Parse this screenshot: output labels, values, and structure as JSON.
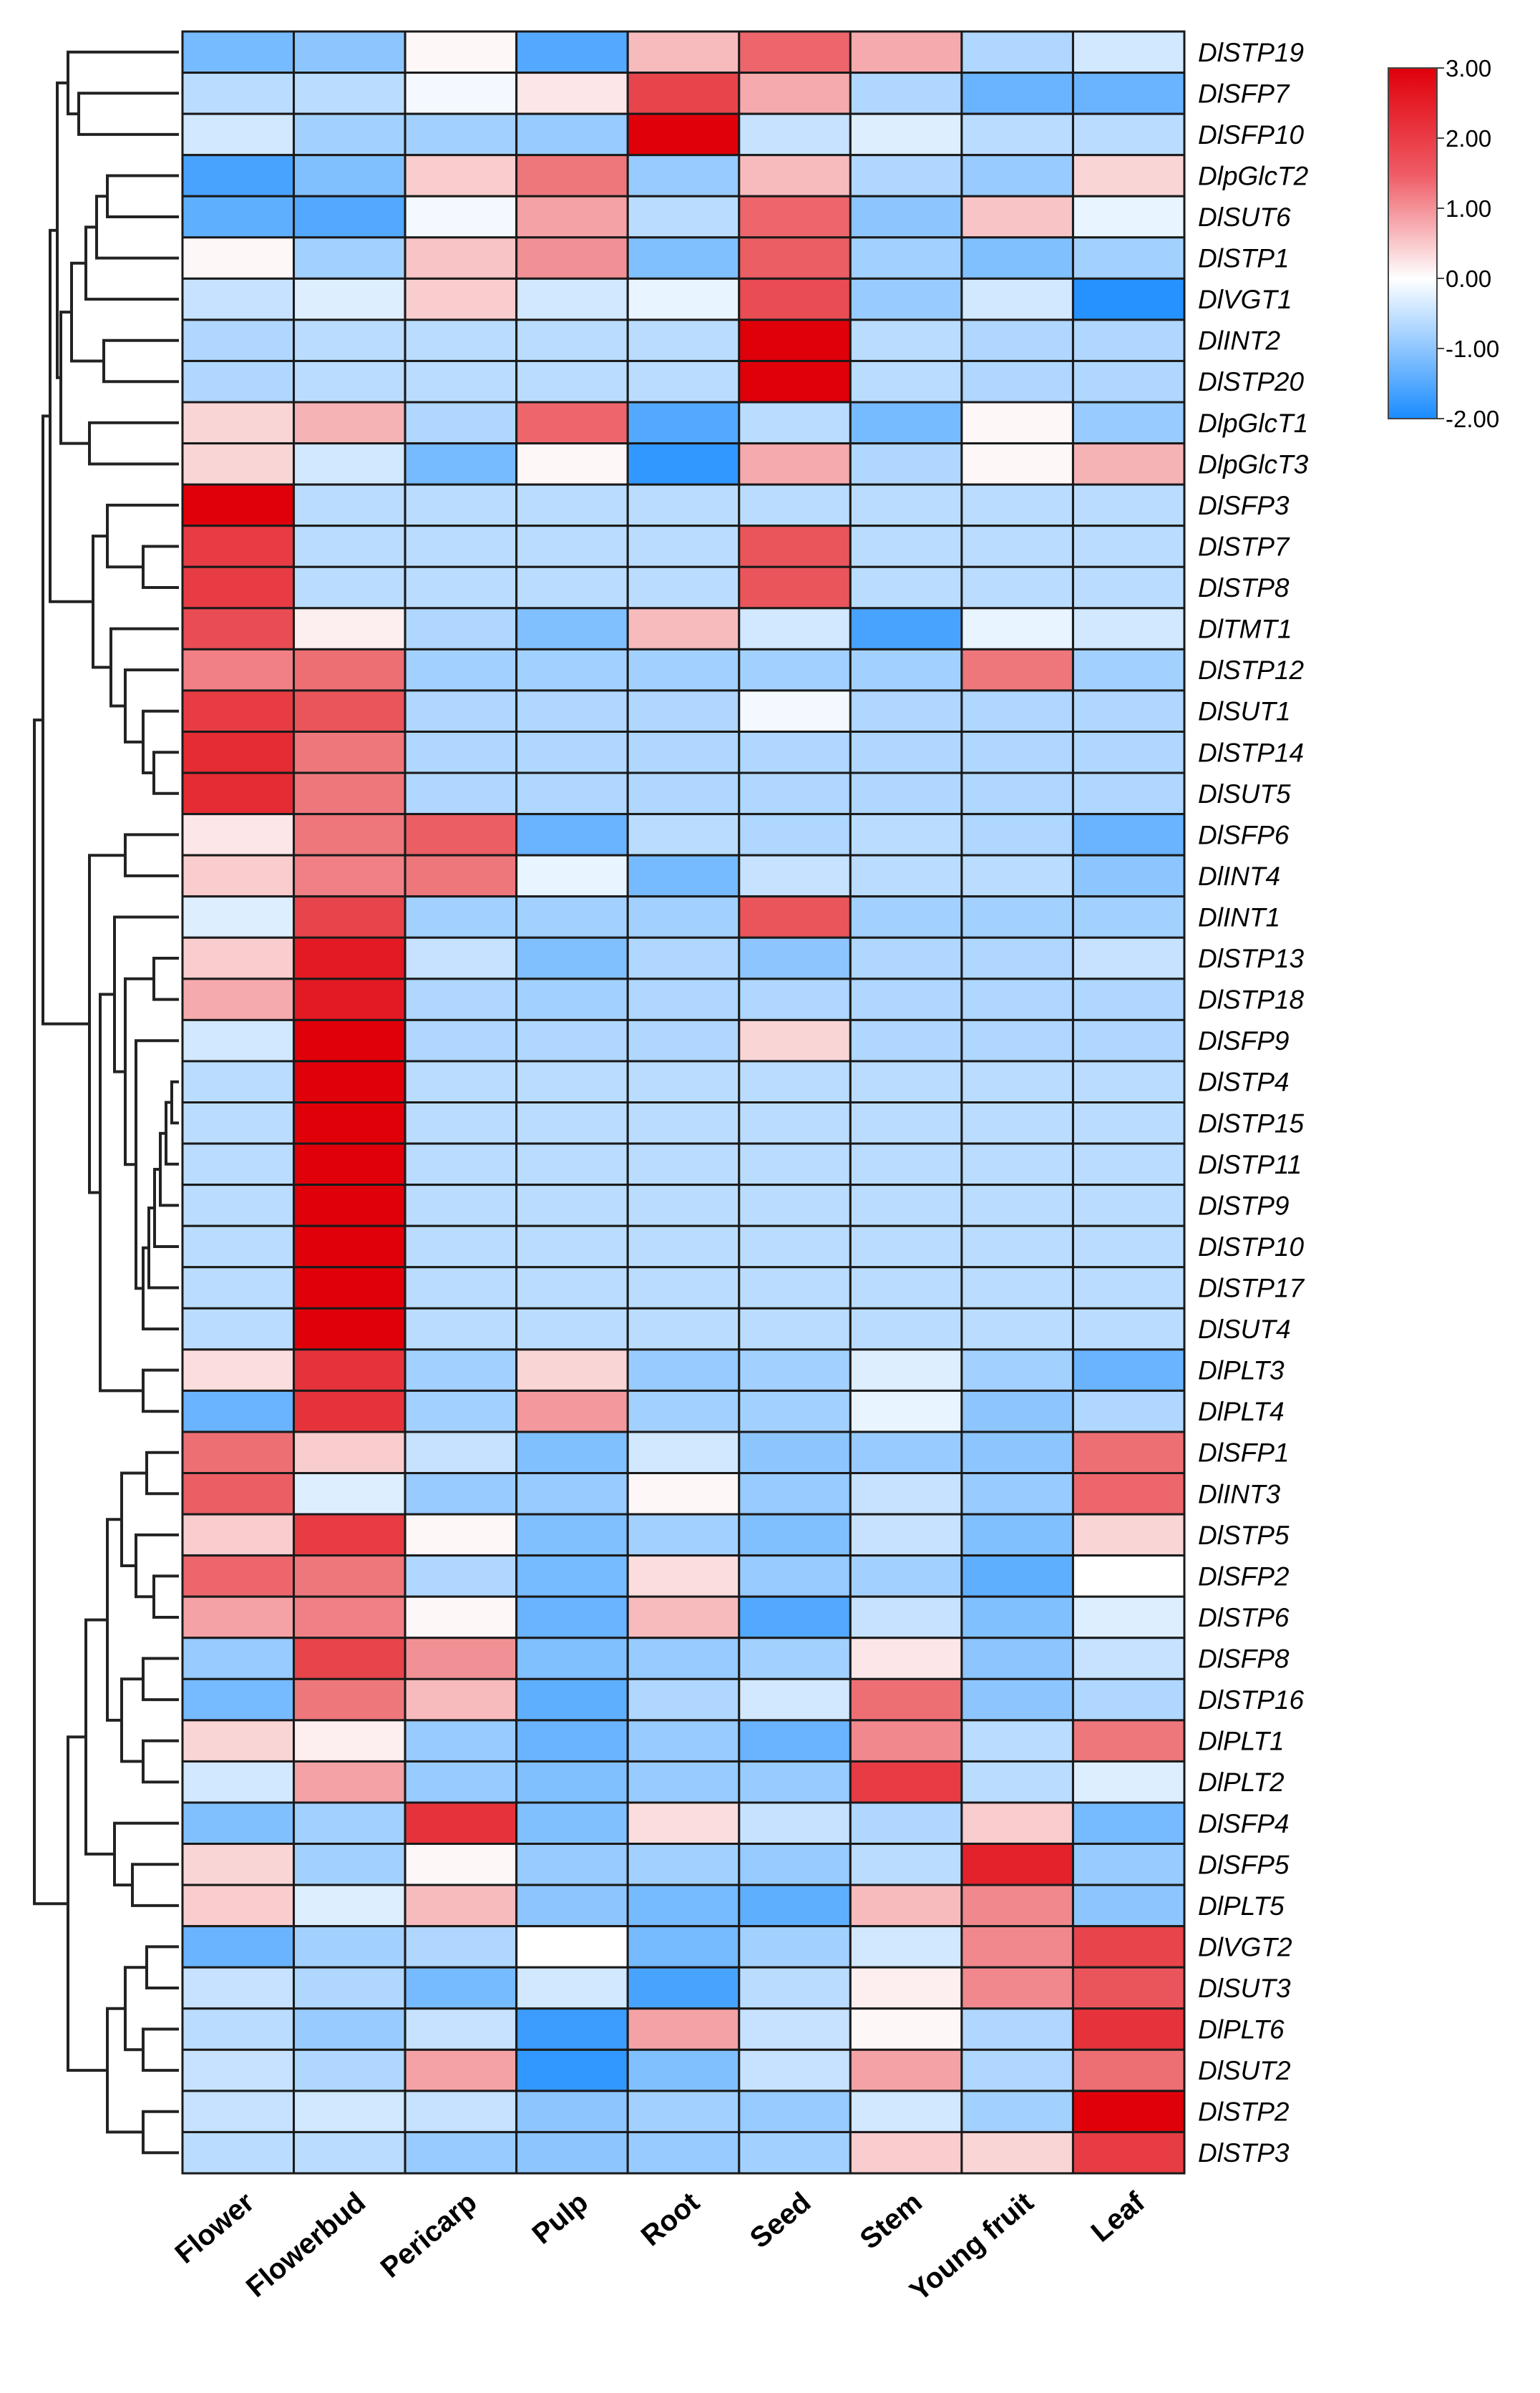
{
  "chart_data": {
    "type": "heatmap",
    "title": "",
    "columns": [
      "Flower",
      "Flowerbud",
      "Pericarp",
      "Pulp",
      "Root",
      "Seed",
      "Stem",
      "Young  fruit",
      "Leaf"
    ],
    "rows": [
      "DlSTP19",
      "DlSFP7",
      "DlSFP10",
      "DlpGlcT2",
      "DlSUT6",
      "DlSTP1",
      "DlVGT1",
      "DlINT2",
      "DlSTP20",
      "DlpGlcT1",
      "DlpGlcT3",
      "DlSFP3",
      "DlSTP7",
      "DlSTP8",
      "DlTMT1",
      "DlSTP12",
      "DlSUT1",
      "DlSTP14",
      "DlSUT5",
      "DlSFP6",
      "DlINT4",
      "DlINT1",
      "DlSTP13",
      "DlSTP18",
      "DlSFP9",
      "DlSTP4",
      "DlSTP15",
      "DlSTP11",
      "DlSTP9",
      "DlSTP10",
      "DlSTP17",
      "DlSUT4",
      "DlPLT3",
      "DlPLT4",
      "DlSFP1",
      "DlINT3",
      "DlSTP5",
      "DlSFP2",
      "DlSTP6",
      "DlSFP8",
      "DlSTP16",
      "DlPLT1",
      "DlPLT2",
      "DlSFP4",
      "DlSFP5",
      "DlPLT5",
      "DlVGT2",
      "DlSUT3",
      "DlPLT6",
      "DlSUT2",
      "DlSTP2",
      "DlSTP3"
    ],
    "values": [
      [
        -1.2,
        -1.0,
        0.1,
        -1.5,
        0.8,
        1.8,
        1.0,
        -0.7,
        -0.4
      ],
      [
        -0.6,
        -0.6,
        -0.1,
        0.3,
        2.2,
        1.0,
        -0.7,
        -1.3,
        -1.3
      ],
      [
        -0.4,
        -0.8,
        -0.8,
        -0.9,
        3.0,
        -0.5,
        -0.3,
        -0.6,
        -0.6
      ],
      [
        -1.6,
        -1.1,
        0.6,
        1.6,
        -0.9,
        0.8,
        -0.7,
        -0.9,
        0.5
      ],
      [
        -1.4,
        -1.5,
        -0.1,
        1.1,
        -0.6,
        1.8,
        -1.0,
        0.7,
        -0.2
      ],
      [
        0.1,
        -0.8,
        0.7,
        1.3,
        -1.1,
        1.9,
        -0.8,
        -1.1,
        -0.8
      ],
      [
        -0.5,
        -0.3,
        0.6,
        -0.4,
        -0.2,
        2.1,
        -0.9,
        -0.4,
        -1.9
      ],
      [
        -0.7,
        -0.6,
        -0.6,
        -0.6,
        -0.6,
        3.0,
        -0.6,
        -0.7,
        -0.7
      ],
      [
        -0.7,
        -0.6,
        -0.6,
        -0.6,
        -0.6,
        3.0,
        -0.6,
        -0.7,
        -0.7
      ],
      [
        0.5,
        0.9,
        -0.7,
        1.8,
        -1.5,
        -0.6,
        -1.2,
        0.1,
        -0.9
      ],
      [
        0.5,
        -0.4,
        -1.2,
        0.1,
        -1.8,
        1.0,
        -0.7,
        0.1,
        0.9
      ],
      [
        3.0,
        -0.6,
        -0.6,
        -0.6,
        -0.6,
        -0.6,
        -0.6,
        -0.6,
        -0.6
      ],
      [
        2.3,
        -0.6,
        -0.6,
        -0.6,
        -0.6,
        2.0,
        -0.6,
        -0.6,
        -0.6
      ],
      [
        2.3,
        -0.6,
        -0.6,
        -0.6,
        -0.6,
        2.0,
        -0.6,
        -0.6,
        -0.6
      ],
      [
        2.1,
        0.2,
        -0.7,
        -1.1,
        0.8,
        -0.4,
        -1.6,
        -0.2,
        -0.4
      ],
      [
        1.5,
        1.7,
        -0.8,
        -0.8,
        -0.8,
        -0.8,
        -0.8,
        1.6,
        -0.8
      ],
      [
        2.3,
        2.0,
        -0.7,
        -0.7,
        -0.7,
        -0.1,
        -0.7,
        -0.7,
        -0.7
      ],
      [
        2.5,
        1.6,
        -0.7,
        -0.7,
        -0.7,
        -0.7,
        -0.7,
        -0.7,
        -0.7
      ],
      [
        2.5,
        1.6,
        -0.7,
        -0.7,
        -0.7,
        -0.7,
        -0.7,
        -0.7,
        -0.7
      ],
      [
        0.3,
        1.6,
        1.9,
        -1.3,
        -0.6,
        -0.7,
        -0.6,
        -0.7,
        -1.3
      ],
      [
        0.6,
        1.5,
        1.6,
        -0.2,
        -1.2,
        -0.5,
        -0.6,
        -0.6,
        -1.0
      ],
      [
        -0.3,
        2.2,
        -0.8,
        -0.8,
        -0.8,
        2.0,
        -0.8,
        -0.8,
        -0.8
      ],
      [
        0.6,
        2.7,
        -0.5,
        -1.1,
        -0.7,
        -1.0,
        -0.7,
        -0.7,
        -0.5
      ],
      [
        1.0,
        2.7,
        -0.7,
        -0.8,
        -0.7,
        -0.7,
        -0.7,
        -0.7,
        -0.7
      ],
      [
        -0.4,
        3.0,
        -0.7,
        -0.7,
        -0.7,
        0.5,
        -0.7,
        -0.7,
        -0.7
      ],
      [
        -0.6,
        3.0,
        -0.6,
        -0.6,
        -0.6,
        -0.6,
        -0.6,
        -0.6,
        -0.6
      ],
      [
        -0.6,
        3.0,
        -0.6,
        -0.6,
        -0.6,
        -0.6,
        -0.6,
        -0.6,
        -0.6
      ],
      [
        -0.6,
        3.0,
        -0.6,
        -0.6,
        -0.6,
        -0.6,
        -0.6,
        -0.6,
        -0.6
      ],
      [
        -0.6,
        3.0,
        -0.6,
        -0.6,
        -0.6,
        -0.6,
        -0.6,
        -0.6,
        -0.6
      ],
      [
        -0.6,
        3.0,
        -0.6,
        -0.6,
        -0.6,
        -0.6,
        -0.6,
        -0.6,
        -0.6
      ],
      [
        -0.6,
        3.0,
        -0.6,
        -0.6,
        -0.6,
        -0.6,
        -0.6,
        -0.6,
        -0.6
      ],
      [
        -0.6,
        3.0,
        -0.6,
        -0.6,
        -0.6,
        -0.6,
        -0.6,
        -0.6,
        -0.6
      ],
      [
        0.4,
        2.4,
        -0.8,
        0.5,
        -0.9,
        -0.8,
        -0.3,
        -0.8,
        -1.3
      ],
      [
        -1.3,
        2.4,
        -0.8,
        1.2,
        -0.8,
        -0.8,
        -0.2,
        -1.0,
        -0.7
      ],
      [
        1.7,
        0.6,
        -0.5,
        -1.1,
        -0.4,
        -1.0,
        -0.9,
        -1.0,
        1.7
      ],
      [
        1.9,
        -0.3,
        -0.9,
        -0.9,
        0.1,
        -0.9,
        -0.5,
        -0.9,
        1.8
      ],
      [
        0.6,
        2.3,
        0.1,
        -1.1,
        -0.8,
        -1.1,
        -0.5,
        -1.1,
        0.5
      ],
      [
        1.8,
        1.6,
        -0.7,
        -1.2,
        0.4,
        -0.9,
        -0.8,
        -1.4,
        0.0
      ],
      [
        1.1,
        1.5,
        0.1,
        -1.3,
        0.8,
        -1.5,
        -0.5,
        -1.1,
        -0.3
      ],
      [
        -0.9,
        2.2,
        1.3,
        -1.1,
        -0.9,
        -0.8,
        0.3,
        -1.0,
        -0.5
      ],
      [
        -1.2,
        1.6,
        0.8,
        -1.4,
        -0.7,
        -0.4,
        1.7,
        -1.0,
        -0.7
      ],
      [
        0.5,
        0.2,
        -0.9,
        -1.3,
        -0.9,
        -1.3,
        1.4,
        -0.6,
        1.6
      ],
      [
        -0.4,
        1.1,
        -0.9,
        -1.1,
        -0.9,
        -0.9,
        2.3,
        -0.6,
        -0.3
      ],
      [
        -1.1,
        -0.8,
        2.4,
        -1.1,
        0.4,
        -0.5,
        -0.7,
        0.6,
        -1.2
      ],
      [
        0.5,
        -0.8,
        0.1,
        -0.9,
        -0.8,
        -0.9,
        -0.6,
        2.6,
        -0.9
      ],
      [
        0.6,
        -0.3,
        0.8,
        -1.0,
        -1.2,
        -1.4,
        0.8,
        1.4,
        -1.0
      ],
      [
        -1.3,
        -0.8,
        -0.7,
        0.0,
        -1.2,
        -0.8,
        -0.4,
        1.4,
        2.2
      ],
      [
        -0.5,
        -0.7,
        -1.2,
        -0.4,
        -1.6,
        -0.6,
        0.2,
        1.4,
        2.0
      ],
      [
        -0.6,
        -0.9,
        -0.5,
        -1.7,
        1.1,
        -0.5,
        0.1,
        -0.7,
        2.4
      ],
      [
        -0.5,
        -0.7,
        1.1,
        -1.8,
        -1.1,
        -0.5,
        1.1,
        -0.7,
        1.7
      ],
      [
        -0.5,
        -0.4,
        -0.5,
        -1.0,
        -0.8,
        -0.9,
        -0.4,
        -0.8,
        3.0
      ],
      [
        -0.6,
        -0.6,
        -0.9,
        -1.0,
        -0.9,
        -0.8,
        0.6,
        0.5,
        2.3
      ]
    ],
    "legend": {
      "ticks": [
        "3.00",
        "2.00",
        "1.00",
        "0.00",
        "-1.00",
        "-2.00"
      ],
      "tick_values": [
        3,
        2,
        1,
        0,
        -1,
        -2
      ],
      "range": [
        -2,
        3
      ],
      "colors": {
        "low": "#1a8cff",
        "mid": "#ffffff",
        "high": "#e0000a"
      },
      "placement": "top-right"
    },
    "row_dendrogram": true,
    "xlabel": "",
    "ylabel": ""
  }
}
